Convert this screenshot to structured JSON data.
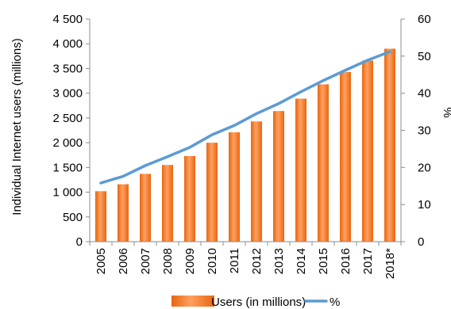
{
  "chart_data": {
    "type": "bar",
    "categories": [
      "2005",
      "2006",
      "2007",
      "2008",
      "2009",
      "2010",
      "2011",
      "2012",
      "2013",
      "2014",
      "2015",
      "2016",
      "2017",
      "2018*"
    ],
    "series": [
      {
        "name": "Users (in millions)",
        "type": "bar",
        "axis": "left",
        "color": "#f47f20",
        "values": [
          1020,
          1160,
          1370,
          1550,
          1730,
          2000,
          2210,
          2430,
          2640,
          2890,
          3180,
          3430,
          3660,
          3900
        ]
      },
      {
        "name": "%",
        "type": "line",
        "axis": "right",
        "color": "#5b9bd5",
        "values": [
          15.8,
          17.6,
          20.5,
          22.9,
          25.4,
          28.8,
          31.3,
          34.5,
          37.2,
          40.4,
          43.4,
          46.2,
          48.9,
          51.2
        ]
      }
    ],
    "ylabel": "Individual Internet users (millions)",
    "y2label": "%",
    "ylim": [
      0,
      4500
    ],
    "y2lim": [
      0,
      60
    ],
    "yticks": [
      "0",
      "500",
      "1 000",
      "1 500",
      "2 000",
      "2 500",
      "3 000",
      "3 500",
      "4 000",
      "4 500"
    ],
    "y2ticks": [
      "0",
      "10",
      "20",
      "30",
      "40",
      "50",
      "60"
    ],
    "grid": false,
    "legend_position": "bottom"
  }
}
